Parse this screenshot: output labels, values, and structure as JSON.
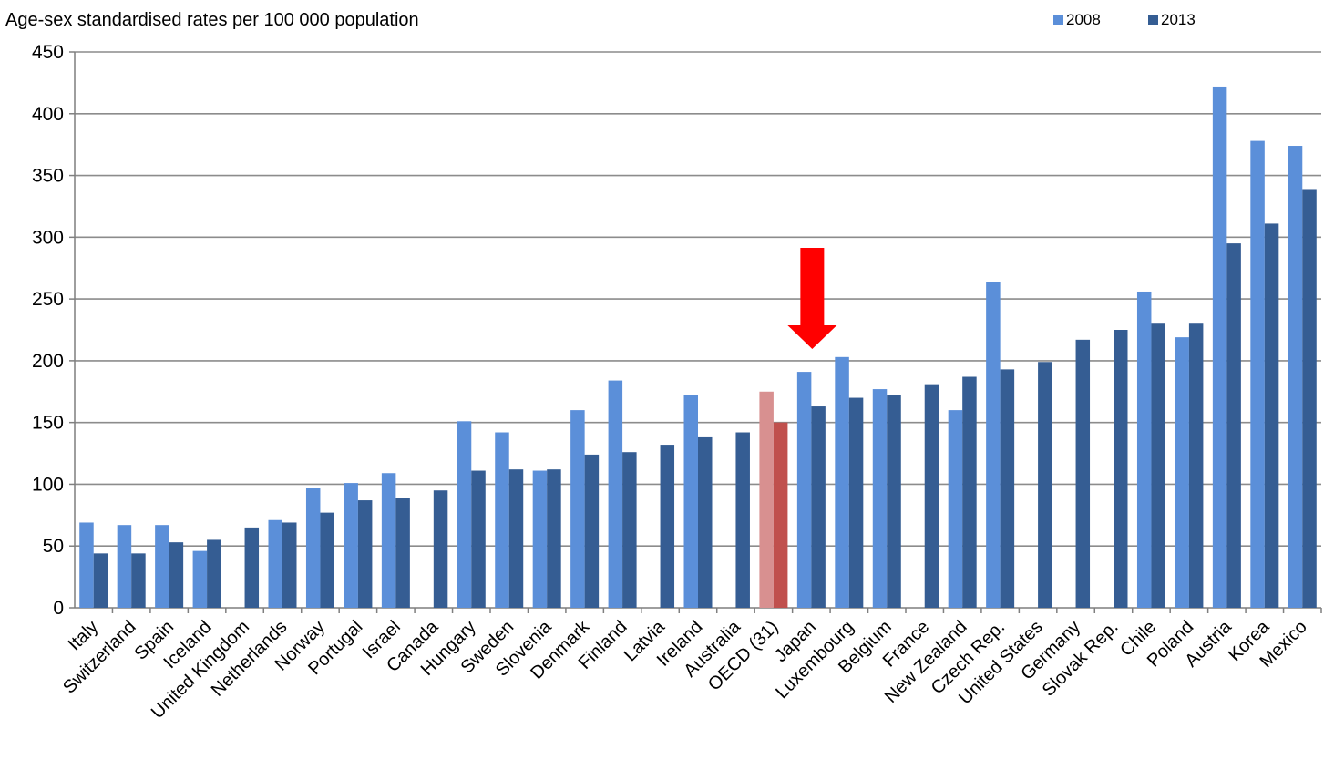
{
  "chart_data": {
    "type": "bar",
    "title": "",
    "ylabel": "Age-sex standardised rates per 100 000 population",
    "xlabel": "",
    "ylim": [
      0,
      450
    ],
    "yticks": [
      0,
      50,
      100,
      150,
      200,
      250,
      300,
      350,
      400,
      450
    ],
    "grid": true,
    "legend_position": "top-right",
    "categories": [
      "Italy",
      "Switzerland",
      "Spain",
      "Iceland",
      "United Kingdom",
      "Netherlands",
      "Norway",
      "Portugal",
      "Israel",
      "Canada",
      "Hungary",
      "Sweden",
      "Slovenia",
      "Denmark",
      "Finland",
      "Latvia",
      "Ireland",
      "Australia",
      "OECD (31)",
      "Japan",
      "Luxembourg",
      "Belgium",
      "France",
      "New Zealand",
      "Czech Rep.",
      "United States",
      "Germany",
      "Slovak Rep.",
      "Chile",
      "Poland",
      "Austria",
      "Korea",
      "Mexico"
    ],
    "series": [
      {
        "name": "2008",
        "color": "#5b8fd9",
        "values": [
          69,
          67,
          67,
          46,
          null,
          71,
          97,
          101,
          109,
          null,
          151,
          142,
          111,
          160,
          184,
          null,
          172,
          null,
          175,
          191,
          203,
          177,
          null,
          160,
          264,
          null,
          null,
          null,
          256,
          219,
          422,
          378,
          374
        ]
      },
      {
        "name": "2013",
        "color": "#355d93",
        "values": [
          44,
          44,
          53,
          55,
          65,
          69,
          77,
          87,
          89,
          95,
          111,
          112,
          112,
          124,
          126,
          132,
          138,
          142,
          150,
          163,
          170,
          172,
          181,
          187,
          193,
          199,
          217,
          225,
          230,
          230,
          295,
          311,
          339
        ]
      }
    ],
    "highlight": {
      "category": "OECD (31)",
      "color_2008": "#d89090",
      "color_2013": "#c0504d"
    },
    "annotation": {
      "type": "arrow",
      "color": "#ff0000",
      "points_to": "Japan"
    }
  }
}
